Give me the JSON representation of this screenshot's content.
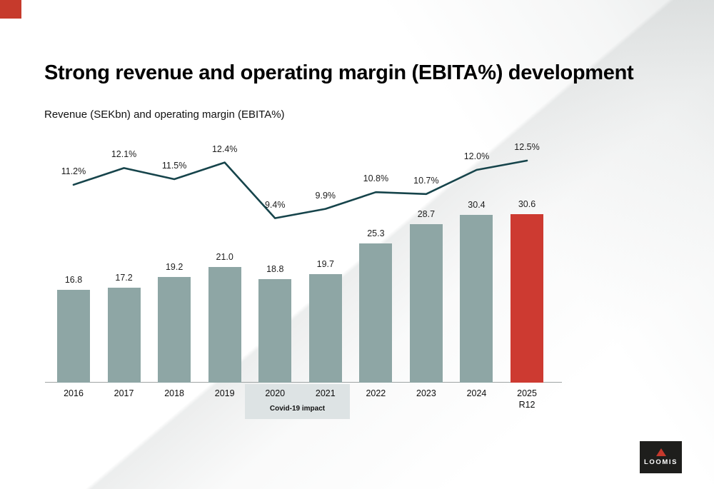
{
  "slide": {
    "title": "Strong revenue and operating margin (EBITA%) development",
    "subtitle": "Revenue (SEKbn) and operating margin (EBITA%)",
    "covid_label": "Covid-19 impact",
    "logo_text": "LOOMIS"
  },
  "colors": {
    "bar": "#8ea6a5",
    "bar_highlight": "#cd3a31",
    "line": "#16444b",
    "covid_box": "#dde3e4",
    "corner_accent": "#c63a2c",
    "logo_bg": "#1e1e1c"
  },
  "chart_data": {
    "type": "bar+line",
    "title": "Strong revenue and operating margin (EBITA%) development",
    "subtitle": "Revenue (SEKbn) and operating margin (EBITA%)",
    "categories": [
      "2016",
      "2017",
      "2018",
      "2019",
      "2020",
      "2021",
      "2022",
      "2023",
      "2024",
      "2025"
    ],
    "category_sublabels": [
      "",
      "",
      "",
      "",
      "",
      "",
      "",
      "",
      "",
      "R12"
    ],
    "series": [
      {
        "name": "Revenue (SEKbn)",
        "type": "bar",
        "values": [
          16.8,
          17.2,
          19.2,
          21.0,
          18.8,
          19.7,
          25.3,
          28.7,
          30.4,
          30.6
        ]
      },
      {
        "name": "Operating margin (EBITA%)",
        "type": "line",
        "values": [
          11.2,
          12.1,
          11.5,
          12.4,
          9.4,
          9.9,
          10.8,
          10.7,
          12.0,
          12.5
        ]
      }
    ],
    "bar_labels": [
      "16.8",
      "17.2",
      "19.2",
      "21.0",
      "18.8",
      "19.7",
      "25.3",
      "28.7",
      "30.4",
      "30.6"
    ],
    "pct_labels": [
      "11.2%",
      "12.1%",
      "11.5%",
      "12.4%",
      "9.4%",
      "9.9%",
      "10.8%",
      "10.7%",
      "12.0%",
      "12.5%"
    ],
    "highlight_index": 9,
    "covid_indices": [
      4,
      5
    ],
    "annotations": [
      "Covid-19 impact"
    ],
    "legend_position": "none",
    "grid": false
  }
}
